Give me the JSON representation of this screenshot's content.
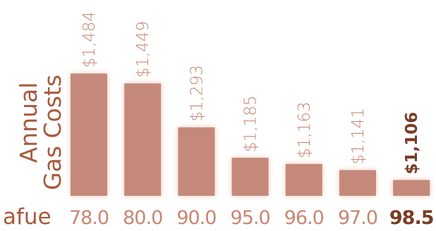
{
  "chart_data": {
    "type": "bar",
    "categories": [
      "78.0",
      "80.0",
      "90.0",
      "95.0",
      "96.0",
      "97.0",
      "98.5"
    ],
    "values": [
      1484,
      1449,
      1293,
      1185,
      1163,
      1141,
      1106
    ],
    "value_labels": [
      "$1,484",
      "$1,449",
      "$1,293",
      "$1,185",
      "$1,163",
      "$1,141",
      "$1,106"
    ],
    "highlight_category": "98.5",
    "xlabel": "afue",
    "ylabel_lines": [
      "Annual",
      "Gas Costs"
    ],
    "ylim": [
      1050,
      1500
    ],
    "grid": false,
    "colors": {
      "bar": "#c4897a",
      "label": "#c98672",
      "axis_label": "#a85a3c",
      "highlight_text": "#7a3b24"
    }
  }
}
